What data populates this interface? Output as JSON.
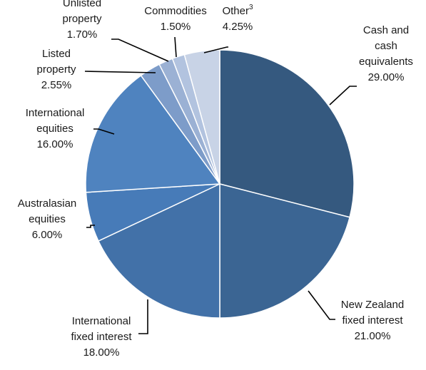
{
  "chart_data": {
    "type": "pie",
    "title": "",
    "unit": "%",
    "slices": [
      {
        "label": "Cash and cash equivalents",
        "label_lines": [
          "Cash and",
          "cash",
          "equivalents"
        ],
        "value_text": "29.00%",
        "value": 29.0,
        "color": "#35597f"
      },
      {
        "label": "New Zealand fixed interest",
        "label_lines": [
          "New Zealand",
          "fixed interest"
        ],
        "value_text": "21.00%",
        "value": 21.0,
        "color": "#3b6593"
      },
      {
        "label": "International fixed interest",
        "label_lines": [
          "International",
          "fixed interest"
        ],
        "value_text": "18.00%",
        "value": 18.0,
        "color": "#4271a8"
      },
      {
        "label": "Australasian equities",
        "label_lines": [
          "Australasian",
          "equities"
        ],
        "value_text": "6.00%",
        "value": 6.0,
        "color": "#477bb8"
      },
      {
        "label": "International equities",
        "label_lines": [
          "International",
          "equities"
        ],
        "value_text": "16.00%",
        "value": 16.0,
        "color": "#4f83bf"
      },
      {
        "label": "Listed property",
        "label_lines": [
          "Listed",
          "property"
        ],
        "value_text": "2.55%",
        "value": 2.55,
        "color": "#7d9cc9"
      },
      {
        "label": "Unlisted property",
        "label_lines": [
          "Unlisted",
          "property"
        ],
        "value_text": "1.70%",
        "value": 1.7,
        "color": "#9bb1d4"
      },
      {
        "label": "Commodities",
        "label_lines": [
          "Commodities"
        ],
        "value_text": "1.50%",
        "value": 1.5,
        "color": "#b2c3df"
      },
      {
        "label": "Other",
        "label_lines": [
          "Other"
        ],
        "footnote": "3",
        "value_text": "4.25%",
        "value": 4.25,
        "color": "#c8d3e6"
      }
    ]
  }
}
